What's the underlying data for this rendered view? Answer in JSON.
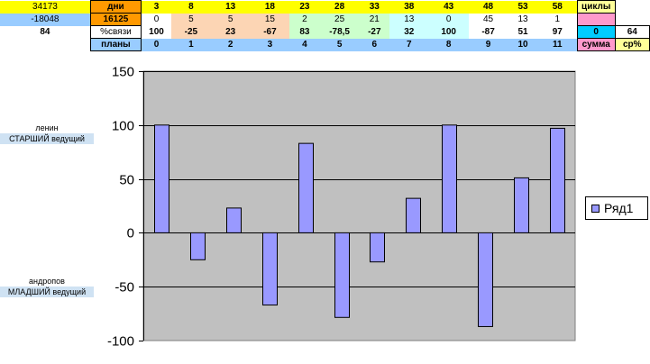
{
  "sheet": {
    "rows": [
      [
        {
          "t": "34173",
          "bg": "#ffff00"
        },
        {
          "t": "дни",
          "bg": "#ff9900",
          "bold": true,
          "border": true
        },
        {
          "t": "3",
          "bg": "#ffff00",
          "bold": true
        },
        {
          "t": "8",
          "bg": "#ffff00",
          "bold": true
        },
        {
          "t": "13",
          "bg": "#ffff00",
          "bold": true
        },
        {
          "t": "18",
          "bg": "#ffff00",
          "bold": true
        },
        {
          "t": "23",
          "bg": "#ffff00",
          "bold": true
        },
        {
          "t": "28",
          "bg": "#ffff00",
          "bold": true
        },
        {
          "t": "33",
          "bg": "#ffff00",
          "bold": true
        },
        {
          "t": "38",
          "bg": "#ffff00",
          "bold": true
        },
        {
          "t": "43",
          "bg": "#ffff00",
          "bold": true
        },
        {
          "t": "48",
          "bg": "#ffff00",
          "bold": true
        },
        {
          "t": "53",
          "bg": "#ffff00",
          "bold": true
        },
        {
          "t": "58",
          "bg": "#ffff00",
          "bold": true
        },
        {
          "t": "циклы",
          "bg": "#ffff99",
          "bold": true,
          "border": true
        },
        {
          "t": "",
          "bg": "#ffffff"
        }
      ],
      [
        {
          "t": "-18048",
          "bg": "#99ccff"
        },
        {
          "t": "16125",
          "bg": "#ff9900",
          "bold": true,
          "border": true
        },
        {
          "t": "0",
          "bg": "#ffffff"
        },
        {
          "t": "5",
          "bg": "#fcd5b4"
        },
        {
          "t": "5",
          "bg": "#fcd5b4"
        },
        {
          "t": "15",
          "bg": "#fcd5b4"
        },
        {
          "t": "2",
          "bg": "#ccffcc"
        },
        {
          "t": "25",
          "bg": "#ccffcc"
        },
        {
          "t": "21",
          "bg": "#ccffcc"
        },
        {
          "t": "13",
          "bg": "#ccffff"
        },
        {
          "t": "0",
          "bg": "#ccffff"
        },
        {
          "t": "45",
          "bg": "#ffffff"
        },
        {
          "t": "13",
          "bg": "#ffffff"
        },
        {
          "t": "1",
          "bg": "#ffffff"
        },
        {
          "t": "",
          "bg": "#ff99cc",
          "border": true
        },
        {
          "t": "",
          "bg": "#ffffff"
        }
      ],
      [
        {
          "t": "84",
          "bg": "#ffffff",
          "bold": true
        },
        {
          "t": "%связи",
          "bg": "#ffffff",
          "border": true
        },
        {
          "t": "100",
          "bg": "#ffffff",
          "bold": true
        },
        {
          "t": "-25",
          "bg": "#fcd5b4",
          "bold": true
        },
        {
          "t": "23",
          "bg": "#fcd5b4",
          "bold": true
        },
        {
          "t": "-67",
          "bg": "#fcd5b4",
          "bold": true
        },
        {
          "t": "83",
          "bg": "#ccffcc",
          "bold": true
        },
        {
          "t": "-78,5",
          "bg": "#ccffcc",
          "bold": true
        },
        {
          "t": "-27",
          "bg": "#ccffcc",
          "bold": true
        },
        {
          "t": "32",
          "bg": "#ccffff",
          "bold": true
        },
        {
          "t": "100",
          "bg": "#ccffff",
          "bold": true
        },
        {
          "t": "-87",
          "bg": "#ffffff",
          "bold": true
        },
        {
          "t": "51",
          "bg": "#ffffff",
          "bold": true
        },
        {
          "t": "97",
          "bg": "#ffffff",
          "bold": true
        },
        {
          "t": "0",
          "bg": "#00ccff",
          "bold": true,
          "border": true
        },
        {
          "t": "64",
          "bg": "#ffffff",
          "bold": true,
          "border": true
        }
      ],
      [
        {
          "t": "",
          "bg": "#ffffff"
        },
        {
          "t": "планы",
          "bg": "#99ccff",
          "bold": true,
          "border": true
        },
        {
          "t": "0",
          "bg": "#99ccff",
          "bold": true
        },
        {
          "t": "1",
          "bg": "#99ccff",
          "bold": true
        },
        {
          "t": "2",
          "bg": "#99ccff",
          "bold": true
        },
        {
          "t": "3",
          "bg": "#99ccff",
          "bold": true
        },
        {
          "t": "4",
          "bg": "#99ccff",
          "bold": true
        },
        {
          "t": "5",
          "bg": "#99ccff",
          "bold": true
        },
        {
          "t": "6",
          "bg": "#99ccff",
          "bold": true
        },
        {
          "t": "7",
          "bg": "#99ccff",
          "bold": true
        },
        {
          "t": "8",
          "bg": "#99ccff",
          "bold": true
        },
        {
          "t": "9",
          "bg": "#99ccff",
          "bold": true
        },
        {
          "t": "10",
          "bg": "#99ccff",
          "bold": true
        },
        {
          "t": "11",
          "bg": "#99ccff",
          "bold": true
        },
        {
          "t": "сумма",
          "bg": "#ff99cc",
          "bold": true,
          "border": true
        },
        {
          "t": "ср%",
          "bg": "#ffff99",
          "bold": true,
          "border": true
        }
      ]
    ]
  },
  "labels": {
    "top_line1": "ленин",
    "top_line2": "СТАРШИЙ ведущий",
    "bottom_line1": "андропов",
    "bottom_line2": "МЛАДШИЙ ведущий"
  },
  "chart_data": {
    "type": "bar",
    "series": [
      {
        "name": "Ряд1",
        "values": [
          100,
          -25,
          23,
          -67,
          83,
          -78.5,
          -27,
          32,
          100,
          -87,
          51,
          97
        ],
        "color": "#9999ff"
      }
    ],
    "ylim": [
      -100,
      150
    ],
    "yticks": [
      "-100",
      "-50",
      "0",
      "50",
      "100",
      "150"
    ],
    "xlabel": "",
    "ylabel": "",
    "title": "",
    "grid": true,
    "plot_background": "#c0c0c0",
    "legend_position": "right"
  }
}
